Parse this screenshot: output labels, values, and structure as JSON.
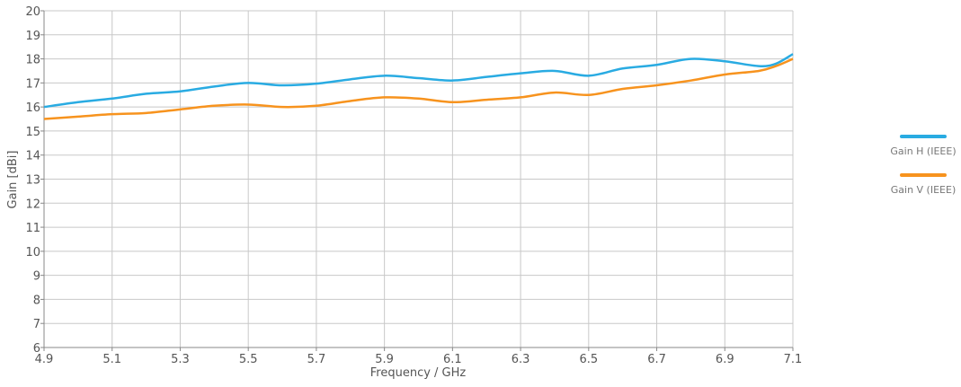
{
  "chart_data": {
    "type": "line",
    "xlabel": "Frequency / GHz",
    "ylabel": "Gain [dBi]",
    "xlim": [
      4.9,
      7.1
    ],
    "ylim": [
      6,
      20
    ],
    "xticks": [
      "4.9",
      "5.1",
      "5.3",
      "5.5",
      "5.7",
      "5.9",
      "6.1",
      "6.3",
      "6.5",
      "6.7",
      "6.9",
      "7.1"
    ],
    "yticks": [
      "6",
      "7",
      "8",
      "9",
      "10",
      "11",
      "12",
      "13",
      "14",
      "15",
      "16",
      "17",
      "18",
      "19",
      "20"
    ],
    "grid": true,
    "legend_position": "right",
    "series": [
      {
        "name": "Gain H (IEEE)",
        "color": "#29abe2",
        "x": [
          4.9,
          5.0,
          5.1,
          5.2,
          5.3,
          5.4,
          5.5,
          5.6,
          5.7,
          5.8,
          5.9,
          6.0,
          6.1,
          6.2,
          6.3,
          6.4,
          6.5,
          6.6,
          6.7,
          6.8,
          6.9,
          7.0,
          7.05,
          7.1
        ],
        "y": [
          16.0,
          16.2,
          16.35,
          16.55,
          16.65,
          16.85,
          17.0,
          16.9,
          16.97,
          17.15,
          17.3,
          17.2,
          17.1,
          17.25,
          17.4,
          17.5,
          17.3,
          17.6,
          17.75,
          18.0,
          17.9,
          17.7,
          17.8,
          18.2
        ]
      },
      {
        "name": "Gain V (IEEE)",
        "color": "#f7931e",
        "x": [
          4.9,
          5.0,
          5.1,
          5.2,
          5.3,
          5.4,
          5.5,
          5.6,
          5.7,
          5.8,
          5.9,
          6.0,
          6.1,
          6.2,
          6.3,
          6.4,
          6.5,
          6.6,
          6.7,
          6.8,
          6.9,
          7.0,
          7.05,
          7.1
        ],
        "y": [
          15.5,
          15.6,
          15.7,
          15.75,
          15.9,
          16.05,
          16.1,
          16.0,
          16.05,
          16.25,
          16.4,
          16.35,
          16.2,
          16.3,
          16.4,
          16.6,
          16.5,
          16.75,
          16.9,
          17.1,
          17.35,
          17.5,
          17.7,
          18.0
        ]
      }
    ]
  }
}
